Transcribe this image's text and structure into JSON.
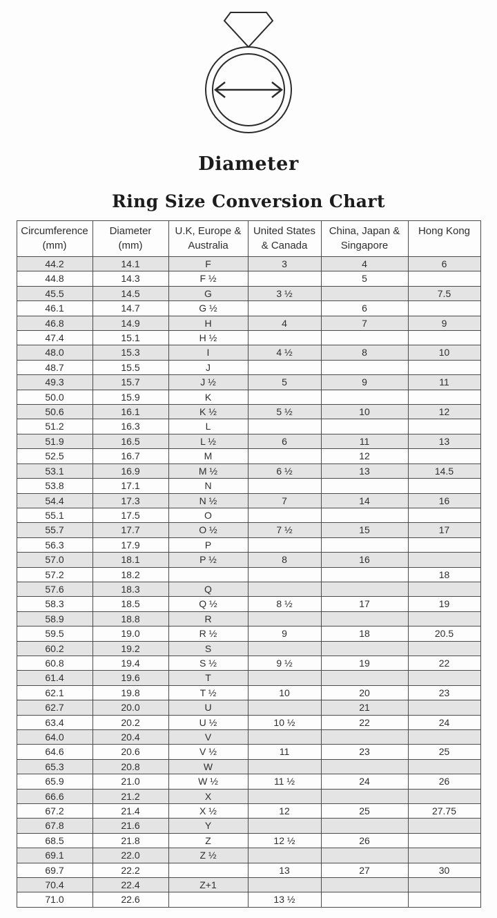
{
  "diagram": {
    "label": "Diameter",
    "icon": "ring-with-diamond-and-diameter-arrow"
  },
  "title": "Ring Size Conversion Chart",
  "colors": {
    "row_shaded": "#e4e4e4",
    "row_plain": "#fdfdfd",
    "border": "#4a4a4a",
    "text": "#2e2e2e",
    "line_art": "#2b2b2b"
  },
  "table": {
    "columns": [
      {
        "line1": "Circumference",
        "line2": "(mm)"
      },
      {
        "line1": "Diameter",
        "line2": "(mm)"
      },
      {
        "line1": "U.K, Europe &",
        "line2": "Australia"
      },
      {
        "line1": "United States",
        "line2": "& Canada"
      },
      {
        "line1": "China, Japan &",
        "line2": "Singapore"
      },
      {
        "line1": "Hong Kong",
        "line2": ""
      }
    ],
    "rows": [
      [
        "44.2",
        "14.1",
        "F",
        "3",
        "4",
        "6"
      ],
      [
        "44.8",
        "14.3",
        "F ½",
        "",
        "5",
        ""
      ],
      [
        "45.5",
        "14.5",
        "G",
        "3 ½",
        "",
        "7.5"
      ],
      [
        "46.1",
        "14.7",
        "G ½",
        "",
        "6",
        ""
      ],
      [
        "46.8",
        "14.9",
        "H",
        "4",
        "7",
        "9"
      ],
      [
        "47.4",
        "15.1",
        "H ½",
        "",
        "",
        ""
      ],
      [
        "48.0",
        "15.3",
        "I",
        "4 ½",
        "8",
        "10"
      ],
      [
        "48.7",
        "15.5",
        "J",
        "",
        "",
        ""
      ],
      [
        "49.3",
        "15.7",
        "J ½",
        "5",
        "9",
        "11"
      ],
      [
        "50.0",
        "15.9",
        "K",
        "",
        "",
        ""
      ],
      [
        "50.6",
        "16.1",
        "K ½",
        "5 ½",
        "10",
        "12"
      ],
      [
        "51.2",
        "16.3",
        "L",
        "",
        "",
        ""
      ],
      [
        "51.9",
        "16.5",
        "L ½",
        "6",
        "11",
        "13"
      ],
      [
        "52.5",
        "16.7",
        "M",
        "",
        "12",
        ""
      ],
      [
        "53.1",
        "16.9",
        "M ½",
        "6 ½",
        "13",
        "14.5"
      ],
      [
        "53.8",
        "17.1",
        "N",
        "",
        "",
        ""
      ],
      [
        "54.4",
        "17.3",
        "N ½",
        "7",
        "14",
        "16"
      ],
      [
        "55.1",
        "17.5",
        "O",
        "",
        "",
        ""
      ],
      [
        "55.7",
        "17.7",
        "O ½",
        "7 ½",
        "15",
        "17"
      ],
      [
        "56.3",
        "17.9",
        "P",
        "",
        "",
        ""
      ],
      [
        "57.0",
        "18.1",
        "P ½",
        "8",
        "16",
        ""
      ],
      [
        "57.2",
        "18.2",
        "",
        "",
        "",
        "18"
      ],
      [
        "57.6",
        "18.3",
        "Q",
        "",
        "",
        ""
      ],
      [
        "58.3",
        "18.5",
        "Q ½",
        "8 ½",
        "17",
        "19"
      ],
      [
        "58.9",
        "18.8",
        "R",
        "",
        "",
        ""
      ],
      [
        "59.5",
        "19.0",
        "R ½",
        "9",
        "18",
        "20.5"
      ],
      [
        "60.2",
        "19.2",
        "S",
        "",
        "",
        ""
      ],
      [
        "60.8",
        "19.4",
        "S ½",
        "9 ½",
        "19",
        "22"
      ],
      [
        "61.4",
        "19.6",
        "T",
        "",
        "",
        ""
      ],
      [
        "62.1",
        "19.8",
        "T ½",
        "10",
        "20",
        "23"
      ],
      [
        "62.7",
        "20.0",
        "U",
        "",
        "21",
        ""
      ],
      [
        "63.4",
        "20.2",
        "U ½",
        "10 ½",
        "22",
        "24"
      ],
      [
        "64.0",
        "20.4",
        "V",
        "",
        "",
        ""
      ],
      [
        "64.6",
        "20.6",
        "V ½",
        "11",
        "23",
        "25"
      ],
      [
        "65.3",
        "20.8",
        "W",
        "",
        "",
        ""
      ],
      [
        "65.9",
        "21.0",
        "W ½",
        "11 ½",
        "24",
        "26"
      ],
      [
        "66.6",
        "21.2",
        "X",
        "",
        "",
        ""
      ],
      [
        "67.2",
        "21.4",
        "X ½",
        "12",
        "25",
        "27.75"
      ],
      [
        "67.8",
        "21.6",
        "Y",
        "",
        "",
        ""
      ],
      [
        "68.5",
        "21.8",
        "Z",
        "12 ½",
        "26",
        ""
      ],
      [
        "69.1",
        "22.0",
        "Z ½",
        "",
        "",
        ""
      ],
      [
        "69.7",
        "22.2",
        "",
        "13",
        "27",
        "30"
      ],
      [
        "70.4",
        "22.4",
        "Z+1",
        "",
        "",
        ""
      ],
      [
        "71.0",
        "22.6",
        "",
        "13 ½",
        "",
        ""
      ]
    ]
  }
}
